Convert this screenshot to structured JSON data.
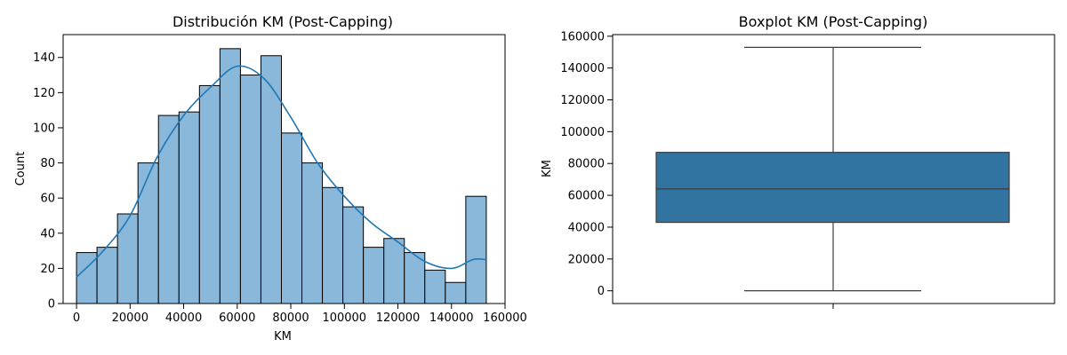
{
  "chart_data": [
    {
      "type": "bar",
      "subtype": "histogram-with-kde",
      "title": "Distribución KM (Post-Capping)",
      "xlabel": "KM",
      "ylabel": "Count",
      "xlim": [
        -5000,
        160000
      ],
      "ylim": [
        0,
        153
      ],
      "bin_edges": [
        0,
        7650,
        15300,
        22950,
        30600,
        38250,
        45900,
        53550,
        61200,
        68850,
        76500,
        84150,
        91800,
        99450,
        107100,
        114750,
        122400,
        130050,
        137700,
        145350,
        153000
      ],
      "counts": [
        29,
        32,
        51,
        80,
        107,
        109,
        124,
        145,
        130,
        141,
        97,
        80,
        66,
        55,
        32,
        37,
        29,
        19,
        12,
        61
      ],
      "kde": {
        "x": [
          0,
          10000,
          20000,
          30000,
          40000,
          50000,
          60000,
          70000,
          80000,
          90000,
          100000,
          110000,
          120000,
          130000,
          140000,
          148000,
          153000
        ],
        "y": [
          15,
          30,
          50,
          83,
          107,
          123,
          135,
          128,
          106,
          80,
          61,
          46,
          35,
          24,
          20,
          25,
          25
        ]
      },
      "xticks": [
        "0",
        "20000",
        "40000",
        "60000",
        "80000",
        "100000",
        "120000",
        "140000",
        "160000"
      ],
      "yticks": [
        "0",
        "20",
        "40",
        "60",
        "80",
        "100",
        "120",
        "140"
      ],
      "colors": {
        "bar": "#8ab8da",
        "edge": "#000000",
        "kde": "#1f77b4"
      }
    },
    {
      "type": "box",
      "title": "Boxplot KM (Post-Capping)",
      "ylabel": "KM",
      "ylim": [
        -8000,
        161000
      ],
      "stats": {
        "min": 0,
        "q1": 43000,
        "median": 64000,
        "q3": 87000,
        "max": 153000
      },
      "yticks": [
        "0",
        "20000",
        "40000",
        "60000",
        "80000",
        "100000",
        "120000",
        "140000",
        "160000"
      ],
      "colors": {
        "box": "#3274a1",
        "line": "#3d3d3d"
      }
    }
  ]
}
